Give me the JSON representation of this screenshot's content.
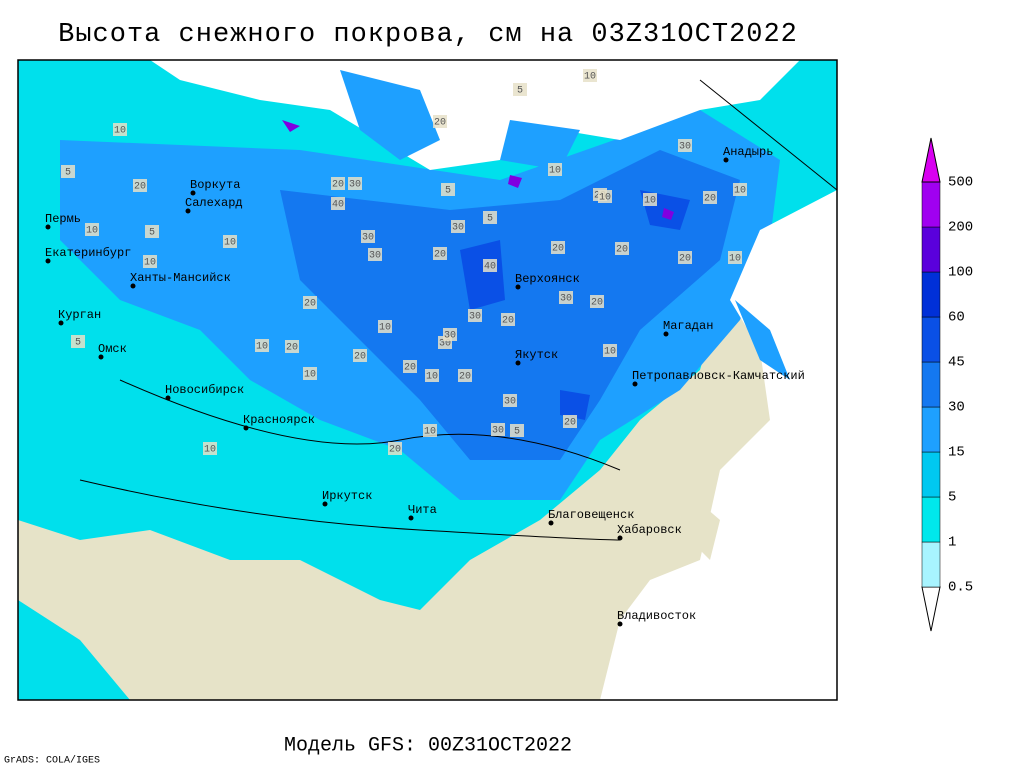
{
  "title": "Высота снежного покрова, см на 03Z31OCT2022",
  "cities": [
    "Воркута",
    "Салехард",
    "Пермь",
    "Екатеринбург",
    "Ханты-Мансийск",
    "Курган",
    "Омск",
    "Новосибирск",
    "Красноярск",
    "Иркутск",
    "Чита",
    "Верхоянск",
    "Якутск",
    "Магадан",
    "Петропавловск-Камчатский",
    "Анадырь",
    "Благовещенск",
    "Хабаровск",
    "Владивосток"
  ],
  "contour_labels": [
    10,
    5,
    10,
    5,
    20,
    10,
    5,
    10,
    20,
    30,
    5,
    20,
    40,
    30,
    30,
    5,
    30,
    20,
    40,
    20,
    10,
    30,
    20,
    10,
    10,
    20,
    20,
    30,
    20,
    10,
    30,
    20,
    30,
    10,
    20,
    10,
    20,
    10,
    30,
    20,
    10,
    20,
    20,
    5,
    10,
    10,
    20,
    5,
    30,
    20,
    10,
    30,
    20,
    10,
    10
  ],
  "legend": {
    "levels": [
      0.5,
      1,
      5,
      15,
      30,
      45,
      60,
      100,
      200,
      500
    ],
    "colors": [
      "#ffffff",
      "#a8f4ff",
      "#00e8ec",
      "#00c8f0",
      "#1ea0ff",
      "#1478f0",
      "#0a50e6",
      "#0030d8",
      "#5a00dc",
      "#a000f0",
      "#d800f0"
    ]
  },
  "footer": "Модель GFS: 00Z31OCT2022",
  "credit": "GrADS: COLA/IGES"
}
